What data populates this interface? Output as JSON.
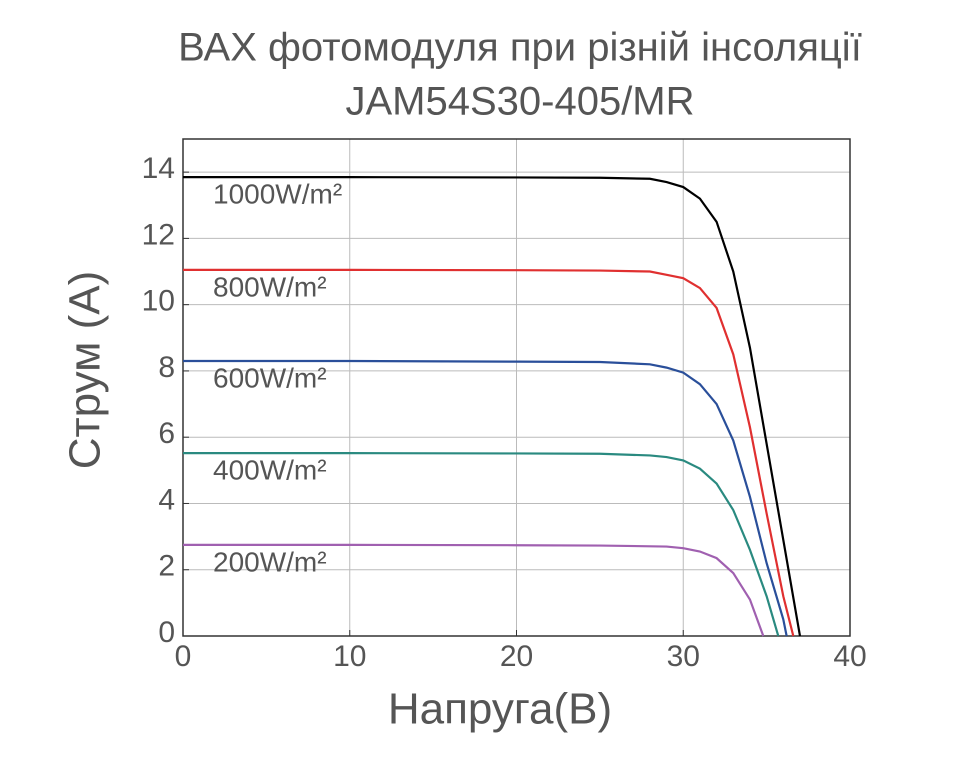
{
  "chart_data": {
    "type": "line",
    "title": "ВАХ фотомодуля при різній інсоляції",
    "subtitle": "JAM54S30-405/MR",
    "x_label": "Напруга(В)",
    "y_label": "Струм (А)",
    "xlim": [
      0,
      40
    ],
    "xticks": [
      0,
      10,
      20,
      30,
      40
    ],
    "ylim": [
      0,
      15
    ],
    "yticks": [
      0,
      2,
      4,
      6,
      8,
      10,
      12,
      14
    ],
    "grid": true,
    "series": [
      {
        "name": "1000W/m²",
        "color": "#000000",
        "x": [
          0,
          10,
          20,
          25,
          28,
          29,
          30,
          31,
          32,
          33,
          34,
          35,
          36,
          37
        ],
        "values": [
          13.85,
          13.85,
          13.84,
          13.83,
          13.8,
          13.7,
          13.55,
          13.2,
          12.5,
          11.0,
          8.7,
          5.8,
          2.9,
          0
        ]
      },
      {
        "name": "800W/m²",
        "color": "#e03030",
        "x": [
          0,
          10,
          20,
          25,
          28,
          29,
          30,
          31,
          32,
          33,
          34,
          35,
          36,
          36.6
        ],
        "values": [
          11.05,
          11.05,
          11.04,
          11.03,
          11.0,
          10.9,
          10.8,
          10.5,
          9.9,
          8.5,
          6.3,
          3.7,
          1.2,
          0
        ]
      },
      {
        "name": "600W/m²",
        "color": "#2a4f9a",
        "x": [
          0,
          10,
          20,
          25,
          28,
          29,
          30,
          31,
          32,
          33,
          34,
          35,
          36,
          36.2
        ],
        "values": [
          8.3,
          8.3,
          8.28,
          8.27,
          8.2,
          8.1,
          7.95,
          7.6,
          7.0,
          5.9,
          4.2,
          2.2,
          0.5,
          0
        ]
      },
      {
        "name": "400W/m²",
        "color": "#2a8a80",
        "x": [
          0,
          10,
          20,
          25,
          28,
          29,
          30,
          31,
          32,
          33,
          34,
          35,
          35.7
        ],
        "values": [
          5.52,
          5.52,
          5.51,
          5.5,
          5.45,
          5.4,
          5.3,
          5.05,
          4.6,
          3.8,
          2.6,
          1.2,
          0
        ]
      },
      {
        "name": "200W/m²",
        "color": "#a060b0",
        "x": [
          0,
          10,
          20,
          25,
          29,
          30,
          31,
          32,
          33,
          34,
          34.8
        ],
        "values": [
          2.75,
          2.75,
          2.74,
          2.73,
          2.7,
          2.65,
          2.55,
          2.35,
          1.9,
          1.1,
          0
        ]
      }
    ]
  }
}
